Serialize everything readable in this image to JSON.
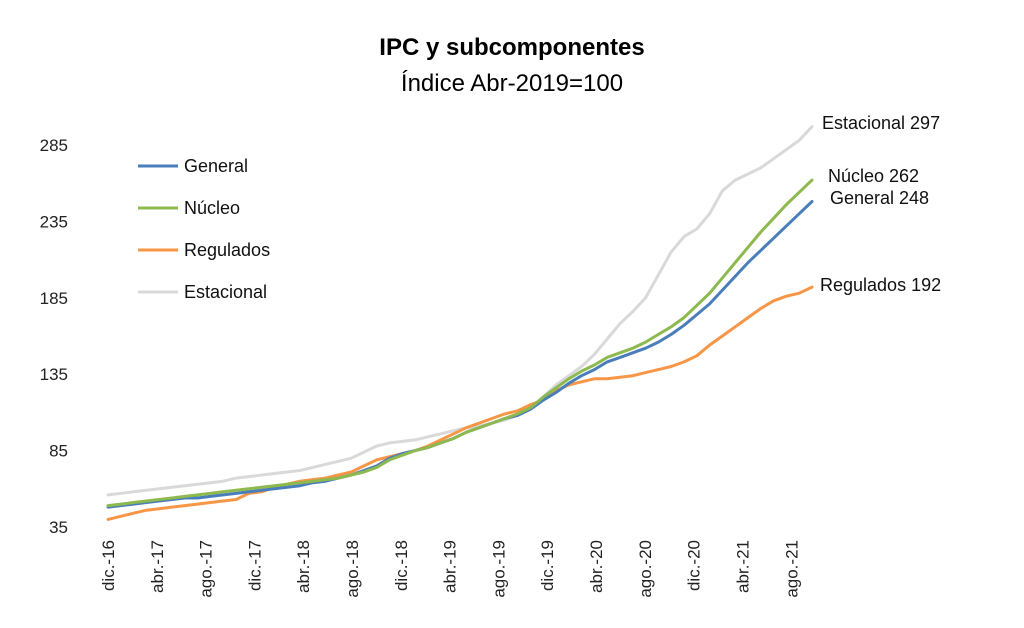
{
  "chart_data": {
    "type": "line",
    "title": "IPC y subcomponentes",
    "subtitle": "Índice Abr-2019=100",
    "ylim": [
      35,
      300
    ],
    "yticks": [
      35,
      85,
      135,
      185,
      235,
      285
    ],
    "xtick_labels": [
      "dic.-16",
      "abr.-17",
      "ago.-17",
      "dic.-17",
      "abr.-18",
      "ago.-18",
      "dic.-18",
      "abr.-19",
      "ago.-19",
      "dic.-19",
      "abr.-20",
      "ago.-20",
      "dic.-20",
      "abr.-21",
      "ago.-21"
    ],
    "legend_position": "top-left",
    "grid": false,
    "series": [
      {
        "name": "General",
        "color": "#4a7ebb",
        "end_label": "General 248",
        "values": [
          48,
          49,
          50,
          51,
          52,
          53,
          54,
          54,
          55,
          56,
          57,
          58,
          59,
          60,
          61,
          62,
          64,
          65,
          67,
          69,
          72,
          75,
          80,
          83,
          85,
          87,
          90,
          93,
          97,
          100,
          103,
          106,
          108,
          112,
          118,
          123,
          129,
          134,
          138,
          143,
          146,
          149,
          152,
          156,
          161,
          167,
          174,
          181,
          190,
          199,
          208,
          216,
          224,
          232,
          240,
          248
        ]
      },
      {
        "name": "Núcleo",
        "color": "#8db94e",
        "end_label": "Núcleo 262",
        "values": [
          49,
          50,
          51,
          52,
          53,
          54,
          55,
          56,
          57,
          58,
          59,
          60,
          61,
          62,
          63,
          64,
          65,
          66,
          67,
          69,
          71,
          74,
          79,
          82,
          85,
          87,
          90,
          93,
          97,
          100,
          103,
          106,
          109,
          113,
          120,
          126,
          132,
          137,
          141,
          146,
          149,
          152,
          156,
          161,
          166,
          172,
          180,
          188,
          198,
          208,
          218,
          228,
          237,
          246,
          254,
          262
        ]
      },
      {
        "name": "Regulados",
        "color": "#f79646",
        "end_label": "Regulados 192",
        "values": [
          40,
          42,
          44,
          46,
          47,
          48,
          49,
          50,
          51,
          52,
          53,
          57,
          58,
          61,
          63,
          65,
          66,
          67,
          69,
          71,
          75,
          79,
          81,
          83,
          85,
          88,
          92,
          96,
          100,
          103,
          106,
          109,
          111,
          115,
          118,
          124,
          128,
          130,
          132,
          132,
          133,
          134,
          136,
          138,
          140,
          143,
          147,
          154,
          160,
          166,
          172,
          178,
          183,
          186,
          188,
          192
        ]
      },
      {
        "name": "Estacional",
        "color": "#d9d9d9",
        "end_label": "Estacional 297",
        "values": [
          56,
          57,
          58,
          59,
          60,
          61,
          62,
          63,
          64,
          65,
          67,
          68,
          69,
          70,
          71,
          72,
          74,
          76,
          78,
          80,
          84,
          88,
          90,
          91,
          92,
          94,
          96,
          98,
          100,
          101,
          103,
          105,
          108,
          113,
          120,
          128,
          134,
          140,
          148,
          158,
          168,
          176,
          185,
          200,
          215,
          225,
          230,
          240,
          255,
          262,
          266,
          270,
          276,
          282,
          288,
          297
        ]
      }
    ]
  }
}
